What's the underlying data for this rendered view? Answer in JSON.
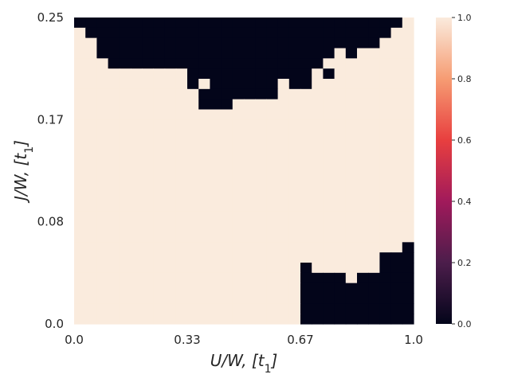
{
  "chart_data": {
    "type": "heatmap",
    "title": "",
    "xlabel": "U/W, [t1]",
    "ylabel": "J/W, [t1]",
    "xlim": [
      0.0,
      1.0
    ],
    "ylim": [
      0.0,
      0.25
    ],
    "x_ticks": [
      "0.0",
      "0.33",
      "0.67",
      "1.0"
    ],
    "y_ticks": [
      "0.0",
      "0.08",
      "0.17",
      "0.25"
    ],
    "grid": false,
    "colorbar": {
      "range": [
        0.0,
        1.0
      ],
      "ticks": [
        "0.0",
        "0.2",
        "0.4",
        "0.6",
        "0.8",
        "1.0"
      ],
      "colormap": "rocket",
      "low_color": "#03051a",
      "high_color": "#faebdd"
    },
    "n_cols": 30,
    "n_rows": 30,
    "row_order": "top-to-bottom",
    "value_encoding": "each string is one row; '1' = value 0.0 (dark), '0' = value 1.0 (light)",
    "rows": [
      "111111111111111111111111111110",
      "011111111111111111111111111100",
      "001111111111111111111111111000",
      "001111111111111111111110100000",
      "000111111111111111111100000000",
      "000000000011111111111010000000",
      "000000000010111111011000000000",
      "000000000001111111000000000000",
      "000000000001110000000000000000",
      "000000000000000000000000000000",
      "000000000000000000000000000000",
      "000000000000000000000000000000",
      "000000000000000000000000000000",
      "000000000000000000000000000000",
      "000000000000000000000000000000",
      "000000000000000000000000000000",
      "000000000000000000000000000000",
      "000000000000000000000000000000",
      "000000000000000000000000000000",
      "000000000000000000000000000000",
      "000000000000000000000000000000",
      "000000000000000000000000000000",
      "000000000000000000000000000001",
      "000000000000000000000000000111",
      "000000000000000000001000000111",
      "000000000000000000001111011111",
      "000000000000000000001111111111",
      "000000000000000000001111111111",
      "000000000000000000001111111111",
      "000000000000000000001111111111"
    ]
  }
}
